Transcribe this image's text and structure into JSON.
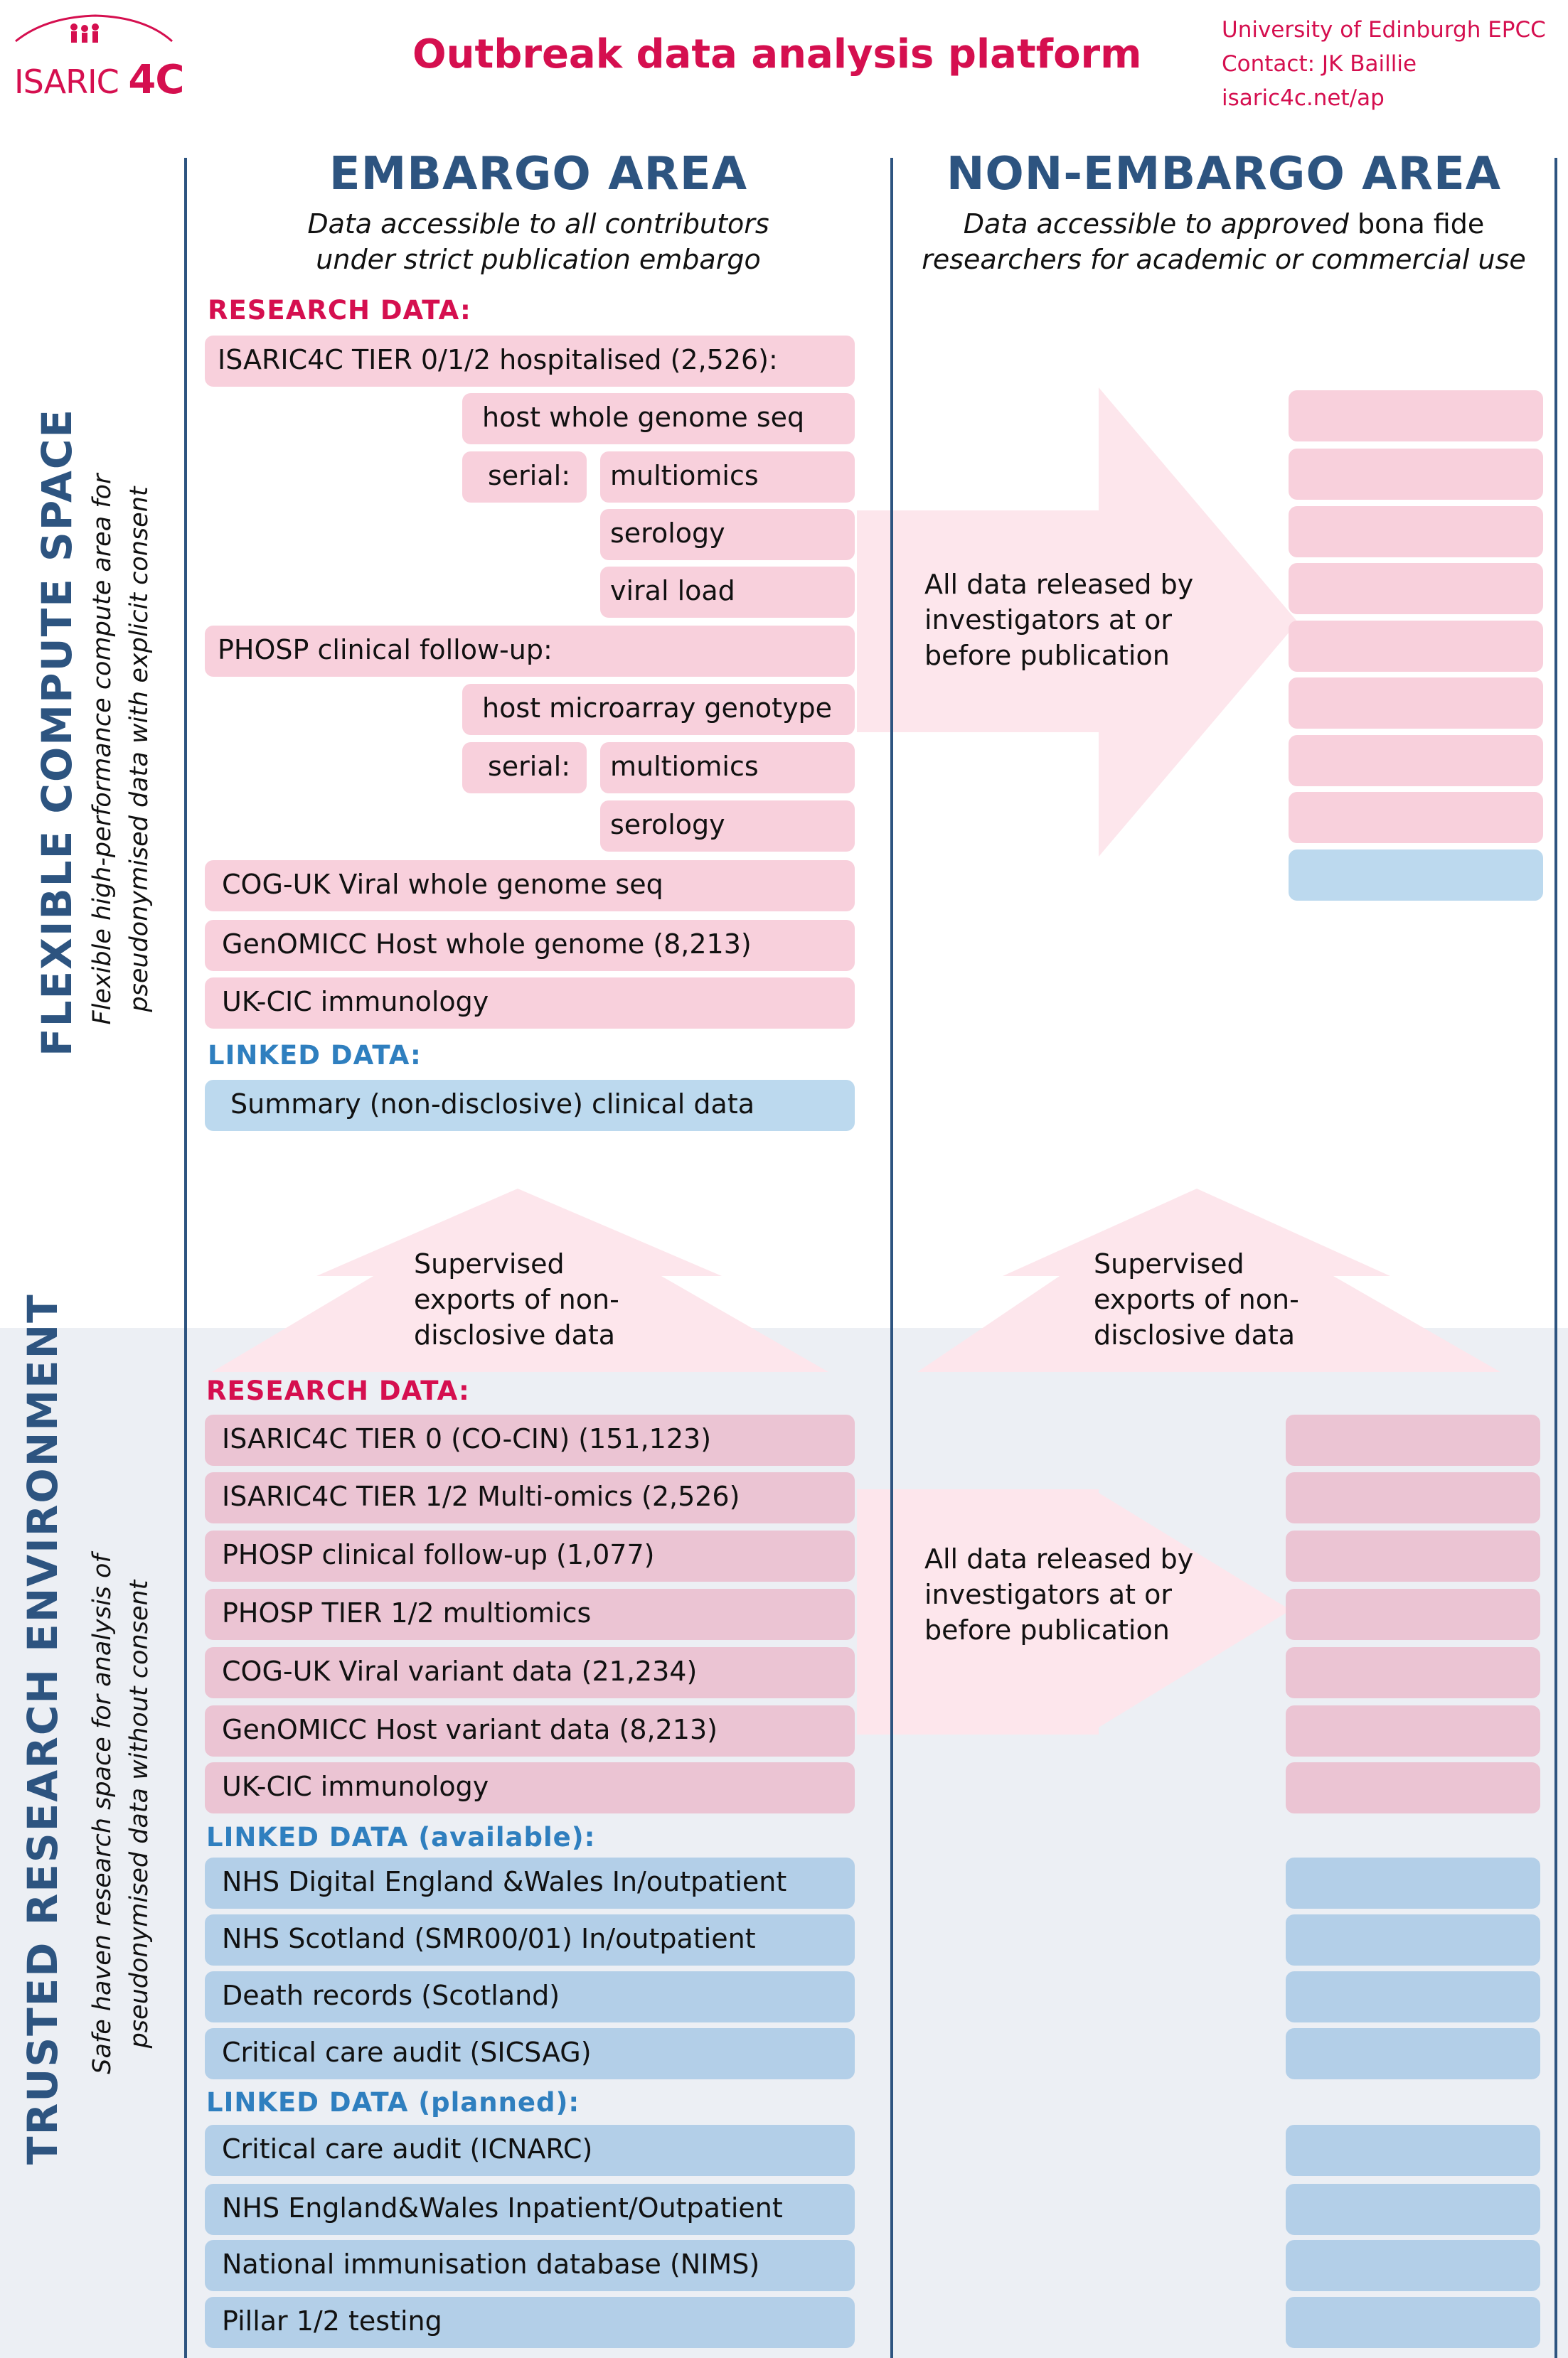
{
  "header": {
    "logo_text_a": "ISARIC",
    "logo_text_b": "4C",
    "title": "Outbreak data analysis platform",
    "contact": [
      "University of Edinburgh EPCC",
      "Contact: JK Baillie",
      "isaric4c.net/ap"
    ]
  },
  "columns": {
    "embargo": {
      "title": "EMBARGO AREA",
      "subtitle_1": "Data accessible to all contributors",
      "subtitle_2": "under strict publication embargo"
    },
    "non_embargo": {
      "title": "NON-EMBARGO AREA",
      "subtitle_1a": "Data accessible to approved ",
      "subtitle_1b": "bona fide",
      "subtitle_2": "researchers for academic or commercial use"
    }
  },
  "flexible": {
    "side_title": "FLEXIBLE COMPUTE SPACE",
    "side_sub_1": "Flexible high-performance compute area for",
    "side_sub_2": "pseudonymised data with explicit consent",
    "research_label": "RESEARCH DATA:",
    "items": {
      "tier012": "ISARIC4C TIER 0/1/2 hospitalised (2,526):",
      "host_wgs": "host whole genome seq",
      "serial1": "serial:",
      "multiomics1": "multiomics",
      "serology1": "serology",
      "viral_load": "viral load",
      "phosp": "PHOSP clinical follow-up:",
      "host_micro": "host microarray genotype",
      "serial2": "serial:",
      "multiomics2": "multiomics",
      "serology2": "serology",
      "cog": "COG-UK Viral whole genome seq",
      "genomicc": "GenOMICC Host whole genome (8,213)",
      "ukcic": "UK-CIC immunology"
    },
    "linked_label": "LINKED DATA:",
    "linked_item": "Summary (non-disclosive) clinical data",
    "release_text": [
      "All data released by",
      "investigators at or",
      "before publication"
    ]
  },
  "exports": {
    "text": [
      "Supervised",
      "exports of non-",
      "disclosive data"
    ]
  },
  "trusted": {
    "side_title": "TRUSTED RESEARCH ENVIRONMENT",
    "side_sub_1": "Safe haven research space for analysis of",
    "side_sub_2": "pseudonymised data without consent",
    "research_label": "RESEARCH DATA:",
    "research_items": [
      "ISARIC4C TIER 0 (CO-CIN) (151,123)",
      "ISARIC4C TIER 1/2 Multi-omics (2,526)",
      "PHOSP clinical follow-up (1,077)",
      "PHOSP TIER 1/2 multiomics",
      "COG-UK Viral variant data (21,234)",
      "GenOMICC Host variant data (8,213)",
      "UK-CIC immunology"
    ],
    "linked_available_label": "LINKED DATA (available):",
    "linked_available": [
      "NHS Digital England &Wales In/outpatient",
      "NHS Scotland (SMR00/01) In/outpatient",
      "Death records (Scotland)",
      "Critical care audit (SICSAG)"
    ],
    "linked_planned_label": "LINKED DATA (planned):",
    "linked_planned": [
      "Critical care audit (ICNARC)",
      "NHS England&Wales Inpatient/Outpatient",
      "National immunisation database (NIMS)",
      "Pillar 1/2 testing"
    ],
    "release_text": [
      "All data released by",
      "investigators at or",
      "before publication"
    ]
  },
  "colors": {
    "brand_red": "#d50f4f",
    "brand_blue": "#2d5480",
    "linked_blue": "#2f7fbf",
    "pink_box": "#f8d0dc",
    "blue_box": "#bcd9ee",
    "arrow_fill": "#fde8ee"
  }
}
